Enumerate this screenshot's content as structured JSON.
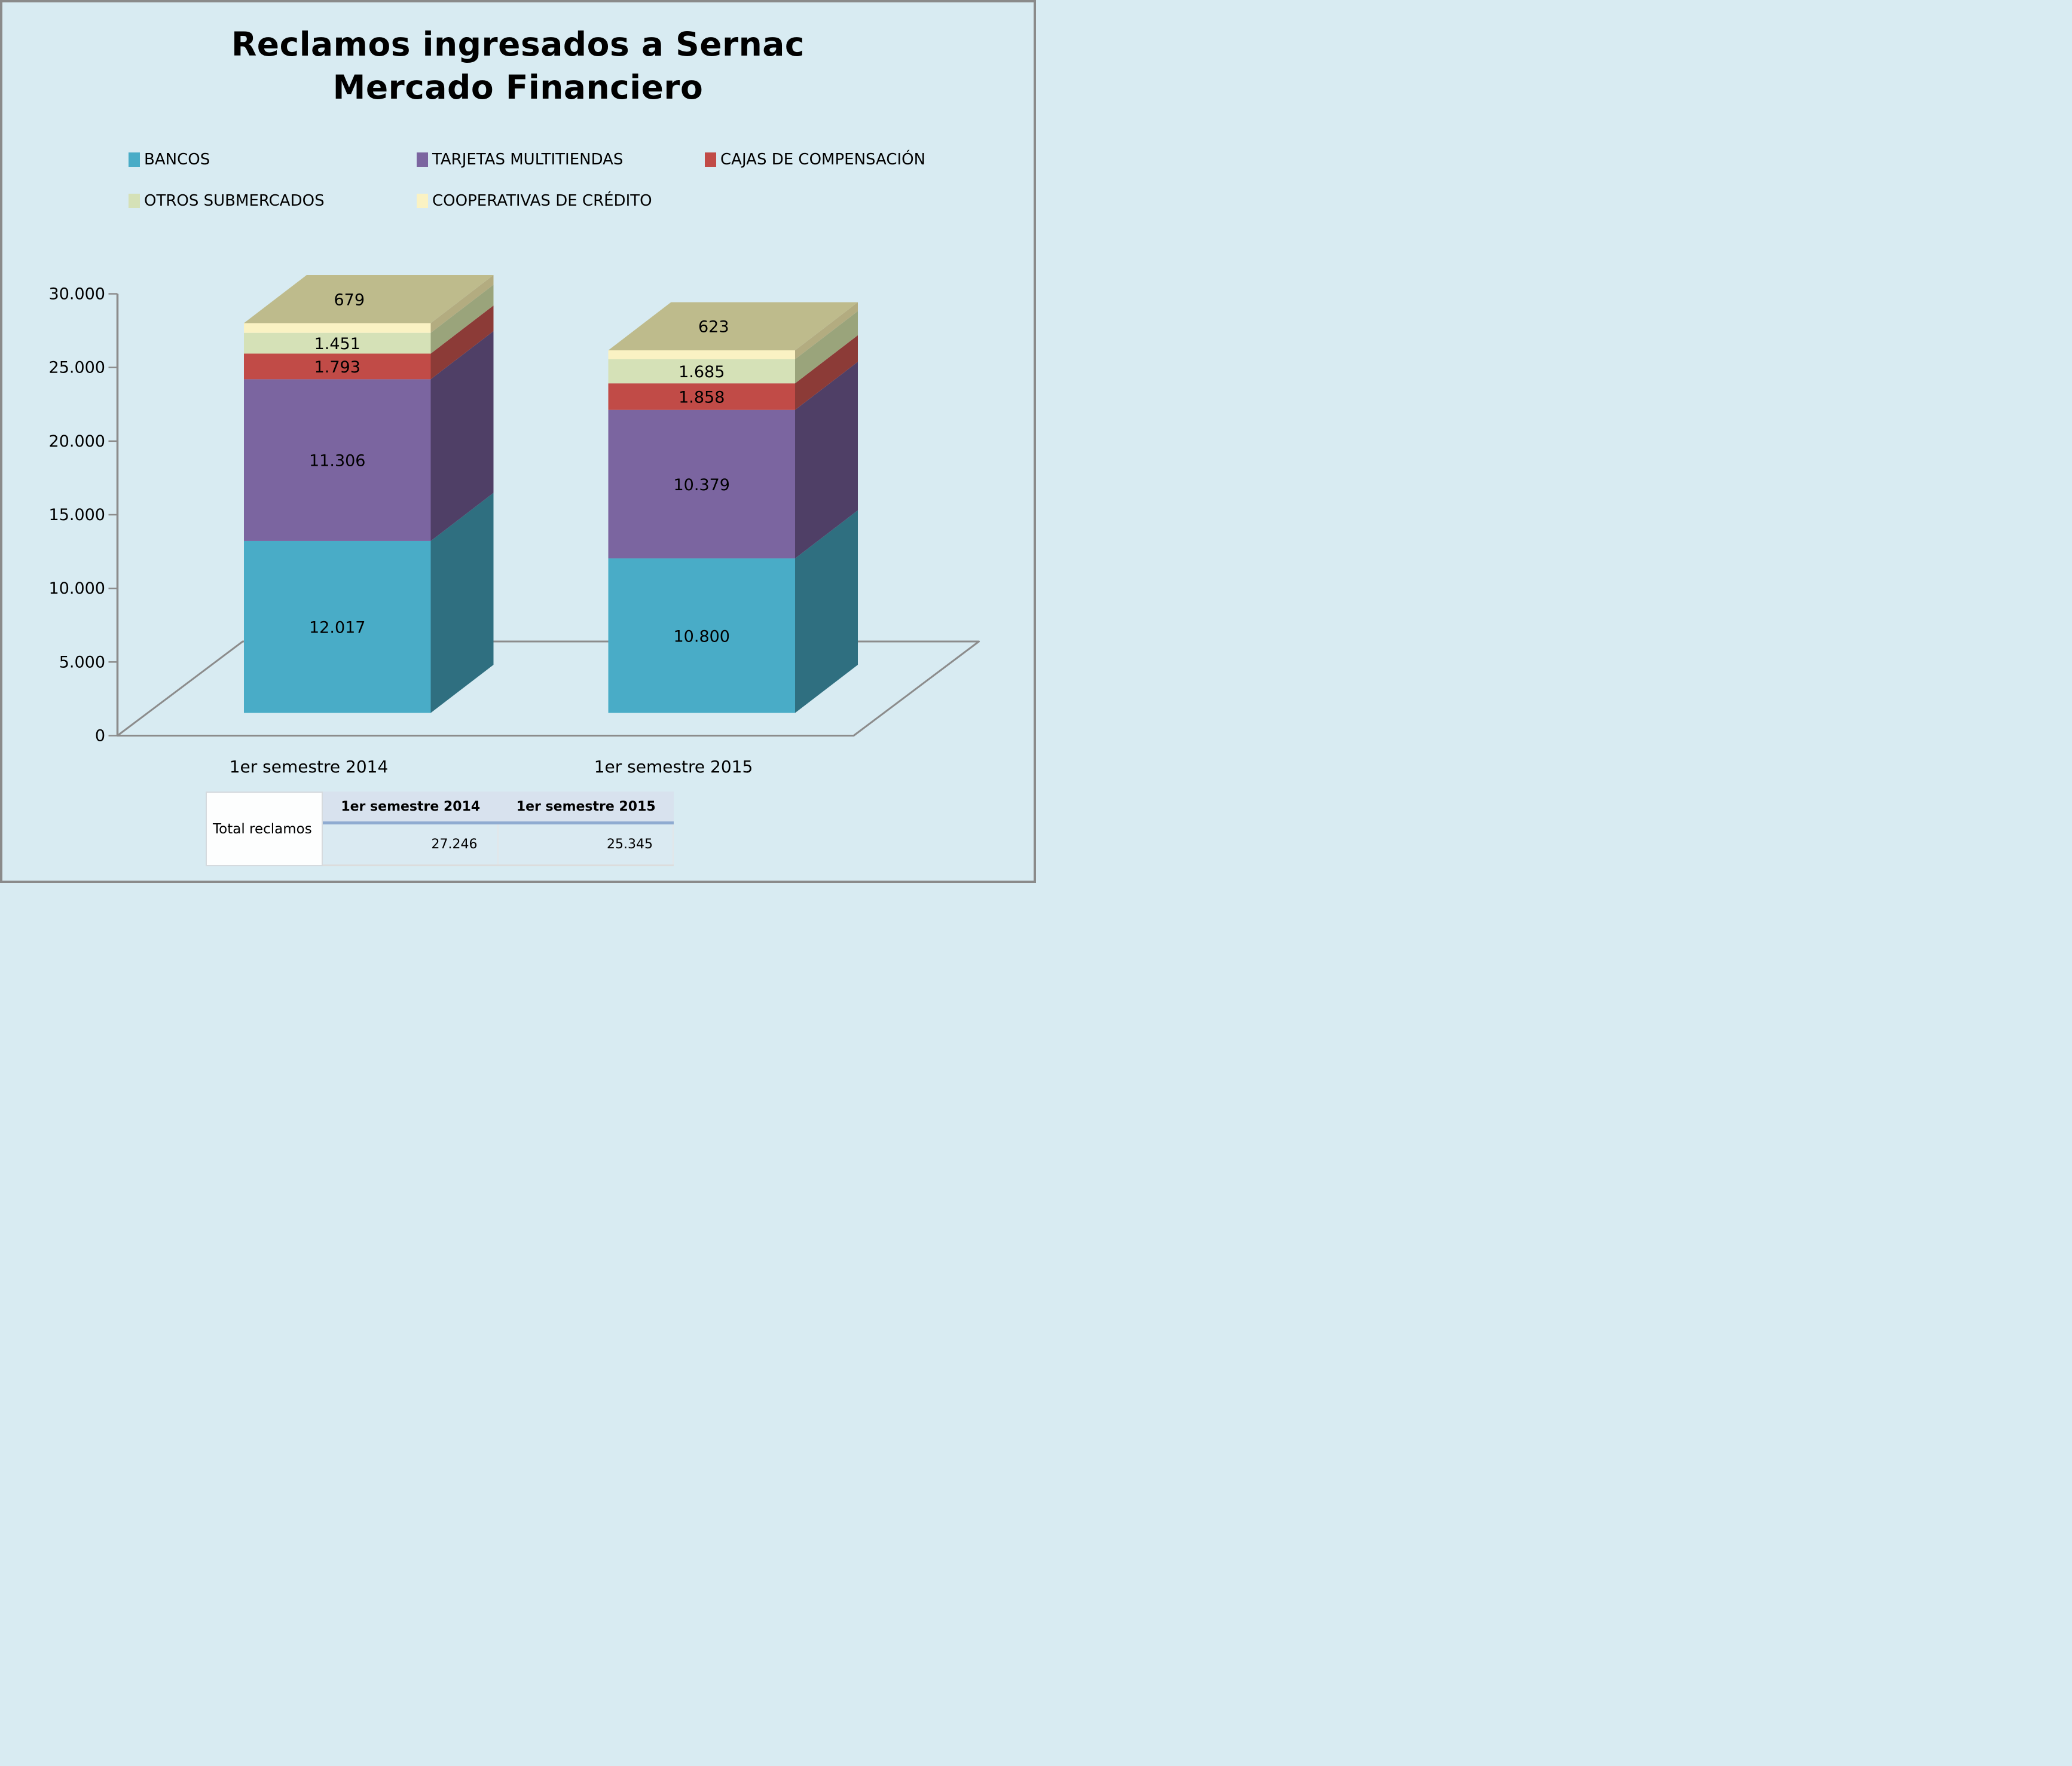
{
  "title": {
    "line1": "Reclamos ingresados a Sernac",
    "line2": "Mercado Financiero"
  },
  "legend": {
    "rows": [
      [
        {
          "label": "BANCOS",
          "color": "#49acc7"
        },
        {
          "label": "TARJETAS MULTITIENDAS",
          "color": "#7b65a0"
        },
        {
          "label": "CAJAS DE COMPENSACIÓN",
          "color": "#c14b47"
        }
      ],
      [
        {
          "label": "OTROS SUBMERCADOS",
          "color": "#d5e1b7"
        },
        {
          "label": "COOPERATIVAS DE CRÉDITO",
          "color": "#faf2c3"
        }
      ]
    ]
  },
  "chart_data": {
    "type": "bar",
    "variant": "3d-stacked",
    "title": "Reclamos ingresados a Sernac Mercado Financiero",
    "categories": [
      "1er semestre 2014",
      "1er semestre 2015"
    ],
    "series": [
      {
        "name": "BANCOS",
        "color": "#49acc7",
        "side_color": "#2f6f80",
        "values": [
          12017,
          10800
        ],
        "labels": [
          "12.017",
          "10.800"
        ]
      },
      {
        "name": "TARJETAS MULTITIENDAS",
        "color": "#7b65a0",
        "side_color": "#4f3f66",
        "values": [
          11306,
          10379
        ],
        "labels": [
          "11.306",
          "10.379"
        ]
      },
      {
        "name": "CAJAS DE COMPENSACIÓN",
        "color": "#c14b47",
        "side_color": "#8c3b37",
        "values": [
          1793,
          1858
        ],
        "labels": [
          "1.793",
          "1.858"
        ]
      },
      {
        "name": "OTROS SUBMERCADOS",
        "color": "#d5e1b7",
        "side_color": "#9aa47b",
        "values": [
          1451,
          1685
        ],
        "labels": [
          "1.451",
          "1.685"
        ]
      },
      {
        "name": "COOPERATIVAS DE CRÉDITO",
        "color": "#faf2c3",
        "side_color": "#b3ac80",
        "top_color": "#bebb8c",
        "values": [
          679,
          623
        ],
        "labels": [
          "679",
          "623"
        ]
      }
    ],
    "y_axis": {
      "min": 0,
      "max": 30000,
      "ticks": [
        "0",
        "5.000",
        "10.000",
        "15.000",
        "20.000",
        "25.000",
        "30.000"
      ]
    },
    "grid": "off",
    "legend_position": "top",
    "axis_color": "#8c8c8c",
    "totals": {
      "1er semestre 2014": 27246,
      "1er semestre 2015": 25345
    }
  },
  "table": {
    "row_label": "Total reclamos",
    "col_headers": [
      "1er semestre 2014",
      "1er semestre 2015"
    ],
    "values": [
      "27.246",
      "25.345"
    ]
  }
}
